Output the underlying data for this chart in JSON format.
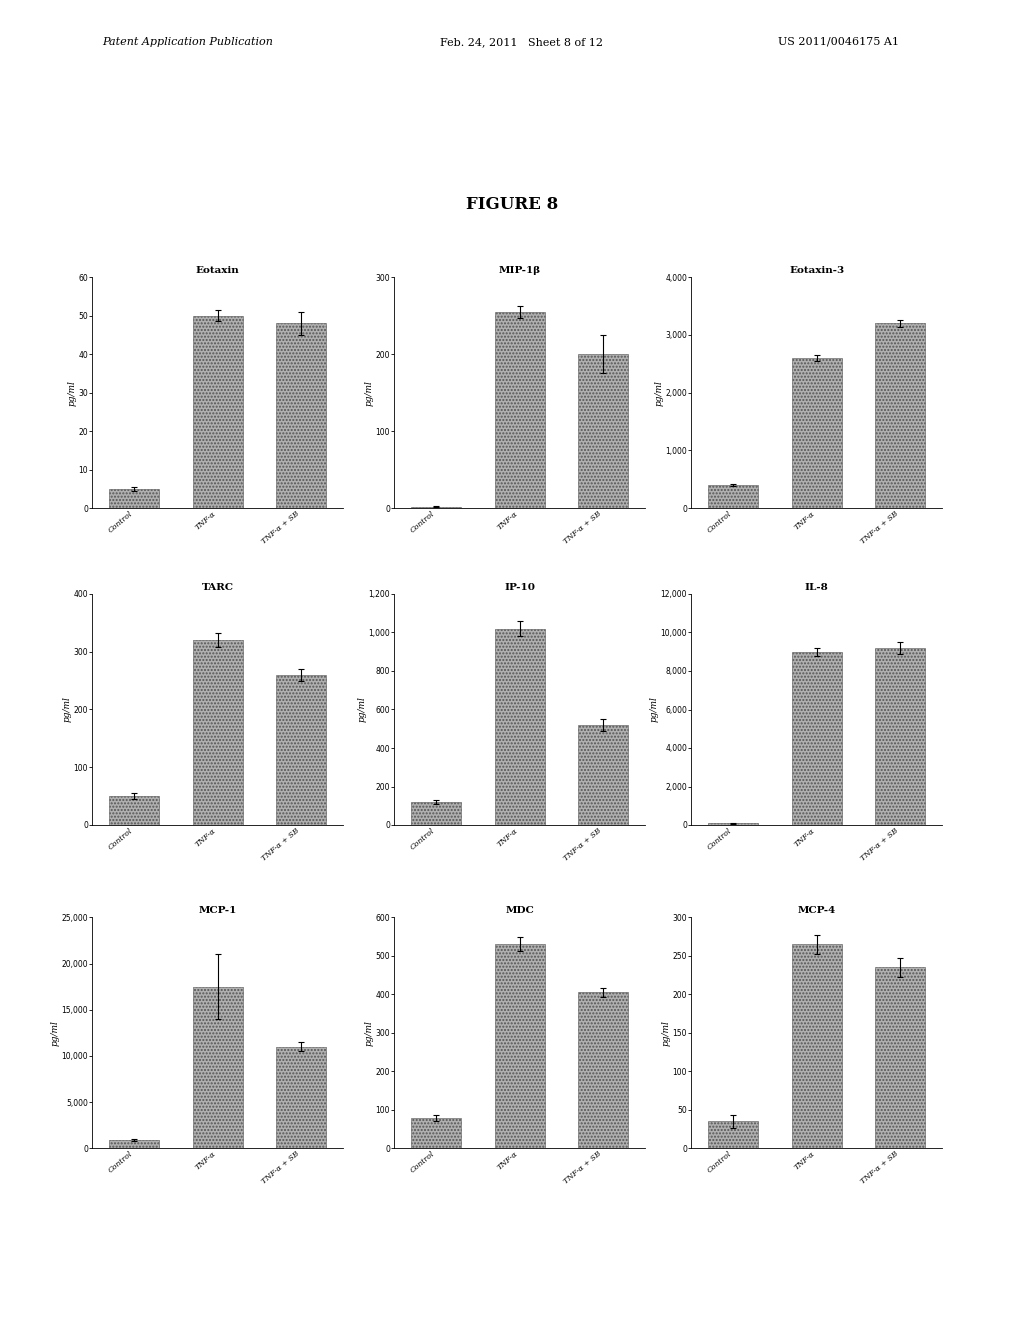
{
  "figure_title": "FIGURE 8",
  "subplots": [
    {
      "title": "Eotaxin",
      "ylabel": "pg/ml",
      "ylim": [
        0,
        60
      ],
      "yticks": [
        0,
        10,
        20,
        30,
        40,
        50,
        60
      ],
      "categories": [
        "Control",
        "TNF-α",
        "TNF-α + SB"
      ],
      "values": [
        5,
        50,
        48
      ],
      "errors": [
        0.5,
        1.5,
        3
      ]
    },
    {
      "title": "MIP-1β",
      "ylabel": "pg/ml",
      "ylim": [
        0,
        300
      ],
      "yticks": [
        0,
        100,
        200,
        300
      ],
      "categories": [
        "Control",
        "TNF-α",
        "TNF-α + SB"
      ],
      "values": [
        2,
        255,
        200
      ],
      "errors": [
        0.5,
        8,
        25
      ]
    },
    {
      "title": "Eotaxin-3",
      "ylabel": "pg/ml",
      "ylim": [
        0,
        4000
      ],
      "yticks": [
        0,
        1000,
        2000,
        3000,
        4000
      ],
      "categories": [
        "Control",
        "TNF-α",
        "TNF-α + SB"
      ],
      "values": [
        400,
        2600,
        3200
      ],
      "errors": [
        20,
        50,
        60
      ]
    },
    {
      "title": "TARC",
      "ylabel": "pg/ml",
      "ylim": [
        0,
        400
      ],
      "yticks": [
        0,
        100,
        200,
        300,
        400
      ],
      "categories": [
        "Control",
        "TNF-α",
        "TNF-α + SB"
      ],
      "values": [
        50,
        320,
        260
      ],
      "errors": [
        5,
        12,
        10
      ]
    },
    {
      "title": "IP-10",
      "ylabel": "pg/ml",
      "ylim": [
        0,
        1200
      ],
      "yticks": [
        0,
        200,
        400,
        600,
        800,
        1000,
        1200
      ],
      "categories": [
        "Control",
        "TNF-α",
        "TNF-α + SB"
      ],
      "values": [
        120,
        1020,
        520
      ],
      "errors": [
        10,
        40,
        30
      ]
    },
    {
      "title": "IL-8",
      "ylabel": "pg/ml",
      "ylim": [
        0,
        12000
      ],
      "yticks": [
        0,
        2000,
        4000,
        6000,
        8000,
        10000,
        12000
      ],
      "categories": [
        "Control",
        "TNF-α",
        "TNF-α + SB"
      ],
      "values": [
        80,
        9000,
        9200
      ],
      "errors": [
        10,
        200,
        300
      ]
    },
    {
      "title": "MCP-1",
      "ylabel": "pg/ml",
      "ylim": [
        0,
        25000
      ],
      "yticks": [
        0,
        5000,
        10000,
        15000,
        20000,
        25000
      ],
      "categories": [
        "Control",
        "TNF-α",
        "TNF-α + SB"
      ],
      "values": [
        900,
        17500,
        11000
      ],
      "errors": [
        100,
        3500,
        500
      ]
    },
    {
      "title": "MDC",
      "ylabel": "pg/ml",
      "ylim": [
        0,
        600
      ],
      "yticks": [
        0,
        100,
        200,
        300,
        400,
        500,
        600
      ],
      "categories": [
        "Control",
        "TNF-α",
        "TNF-α + SB"
      ],
      "values": [
        80,
        530,
        405
      ],
      "errors": [
        8,
        18,
        12
      ]
    },
    {
      "title": "MCP-4",
      "ylabel": "pg/ml",
      "ylim": [
        0,
        300
      ],
      "yticks": [
        0,
        50,
        100,
        150,
        200,
        250,
        300
      ],
      "categories": [
        "Control",
        "TNF-α",
        "TNF-α + SB"
      ],
      "values": [
        35,
        265,
        235
      ],
      "errors": [
        8,
        12,
        12
      ]
    }
  ],
  "bar_color": "#b0b0b0",
  "bar_hatch": ".....",
  "bg_color": "#ffffff",
  "header_left": "Patent Application Publication",
  "header_mid": "Feb. 24, 2011   Sheet 8 of 12",
  "header_right": "US 2011/0046175 A1"
}
